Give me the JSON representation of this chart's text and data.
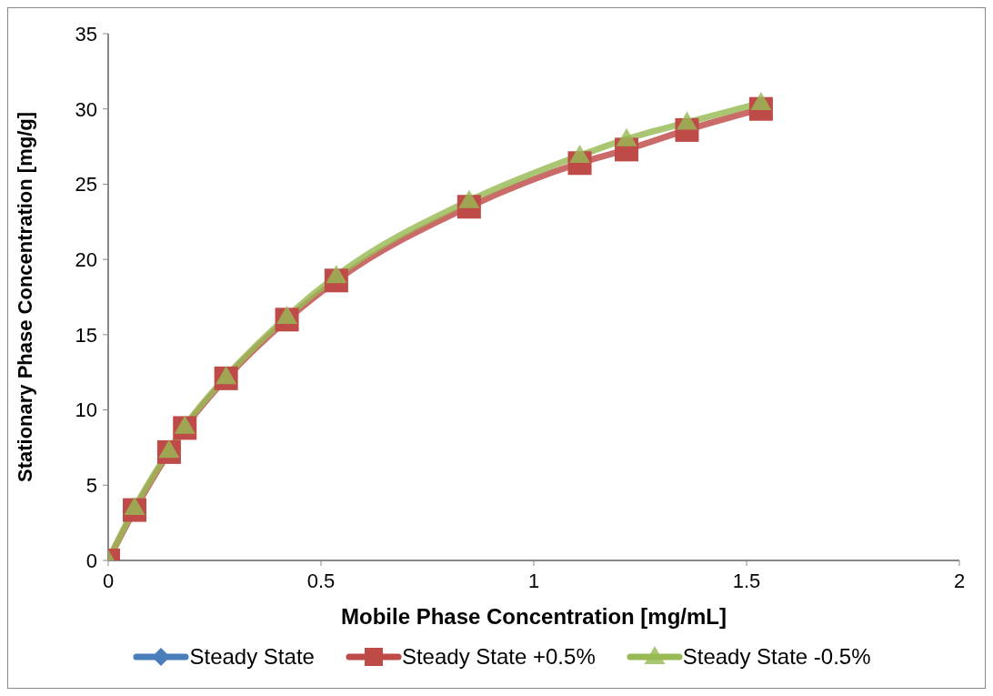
{
  "chart_data": {
    "type": "line",
    "xlabel": "Mobile Phase Concentration  [mg/mL]",
    "ylabel": "Stationary Phase Concentration [mg/g]",
    "x": [
      0,
      0.062,
      0.143,
      0.18,
      0.277,
      0.42,
      0.536,
      0.848,
      1.108,
      1.218,
      1.36,
      1.534
    ],
    "series": [
      {
        "name": "Steady State",
        "color": "#4a7ebb",
        "marker": "diamond",
        "values": [
          null,
          null,
          null,
          null,
          null,
          null,
          null,
          null,
          null,
          null,
          null,
          null
        ]
      },
      {
        "name": "Steady State +0.5%",
        "color": "#be4b48",
        "marker": "square",
        "values": [
          0,
          3.35,
          7.2,
          8.8,
          12.1,
          16.0,
          18.6,
          23.5,
          26.4,
          27.3,
          28.6,
          30.0
        ]
      },
      {
        "name": "Steady State -0.5%",
        "color": "#98b954",
        "marker": "triangle",
        "values": [
          0,
          3.5,
          7.3,
          8.9,
          12.2,
          16.2,
          18.9,
          23.9,
          26.9,
          28.0,
          29.1,
          30.4
        ]
      }
    ],
    "xlim": [
      0,
      2
    ],
    "xticks": [
      0,
      0.5,
      1,
      1.5,
      2
    ],
    "ylim": [
      0,
      35
    ],
    "yticks": [
      0,
      5,
      10,
      15,
      20,
      25,
      30,
      35
    ],
    "grid": false,
    "legend": "bottom",
    "line_style": "solid"
  }
}
